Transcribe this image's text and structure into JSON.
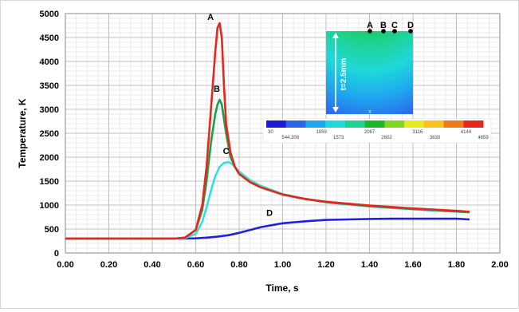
{
  "chart_data": {
    "type": "line",
    "xlabel": "Time, s",
    "ylabel": "Temperature, K",
    "xlim": [
      0,
      2
    ],
    "ylim": [
      0,
      5000
    ],
    "x_ticks": [
      "0.00",
      "0.20",
      "0.40",
      "0.60",
      "0.80",
      "1.00",
      "1.20",
      "1.40",
      "1.60",
      "1.80",
      "2.00"
    ],
    "y_ticks": [
      "0",
      "500",
      "1000",
      "1500",
      "2000",
      "2500",
      "3000",
      "3500",
      "4000",
      "4500",
      "5000"
    ],
    "grid": true,
    "series": [
      {
        "name": "A",
        "color": "#e8261c",
        "x": [
          0,
          0.5,
          0.55,
          0.6,
          0.63,
          0.65,
          0.67,
          0.69,
          0.7,
          0.71,
          0.72,
          0.73,
          0.74,
          0.76,
          0.78,
          0.8,
          0.85,
          0.9,
          1.0,
          1.1,
          1.2,
          1.4,
          1.6,
          1.8,
          1.86
        ],
        "y": [
          300,
          300,
          320,
          480,
          1000,
          1800,
          3000,
          4200,
          4700,
          4800,
          4500,
          3500,
          2700,
          2100,
          1800,
          1650,
          1480,
          1370,
          1220,
          1130,
          1070,
          990,
          930,
          880,
          860
        ]
      },
      {
        "name": "B",
        "color": "#1aa04a",
        "x": [
          0,
          0.5,
          0.55,
          0.6,
          0.63,
          0.65,
          0.67,
          0.69,
          0.7,
          0.71,
          0.72,
          0.73,
          0.74,
          0.76,
          0.78,
          0.8,
          0.85,
          0.9,
          1.0,
          1.1,
          1.2,
          1.4,
          1.6,
          1.8,
          1.86
        ],
        "y": [
          300,
          300,
          320,
          480,
          900,
          1500,
          2300,
          2900,
          3100,
          3200,
          3100,
          2800,
          2500,
          2000,
          1800,
          1650,
          1480,
          1370,
          1220,
          1130,
          1060,
          980,
          920,
          870,
          850
        ]
      },
      {
        "name": "C",
        "color": "#33e0e0",
        "x": [
          0,
          0.5,
          0.55,
          0.6,
          0.63,
          0.65,
          0.67,
          0.69,
          0.71,
          0.73,
          0.75,
          0.77,
          0.8,
          0.85,
          0.9,
          1.0,
          1.1,
          1.2,
          1.4,
          1.6,
          1.8,
          1.86
        ],
        "y": [
          300,
          300,
          310,
          400,
          650,
          950,
          1300,
          1600,
          1800,
          1880,
          1900,
          1850,
          1700,
          1520,
          1400,
          1230,
          1130,
          1060,
          970,
          910,
          860,
          850
        ]
      },
      {
        "name": "D",
        "color": "#2020e0",
        "x": [
          0,
          0.5,
          0.55,
          0.6,
          0.65,
          0.7,
          0.75,
          0.8,
          0.85,
          0.9,
          0.95,
          1.0,
          1.1,
          1.2,
          1.3,
          1.4,
          1.5,
          1.6,
          1.7,
          1.8,
          1.86
        ],
        "y": [
          300,
          300,
          300,
          305,
          320,
          340,
          370,
          420,
          480,
          540,
          580,
          620,
          660,
          690,
          700,
          710,
          715,
          715,
          715,
          715,
          700
        ]
      }
    ],
    "inset": {
      "labels": [
        "A",
        "B",
        "C",
        "D"
      ],
      "thickness_label": "t=2.5mm",
      "bottom_marker": "x",
      "colorbar_ticks_top": [
        "30",
        "1059",
        "2087",
        "3116",
        "4144"
      ],
      "colorbar_ticks_bottom": [
        "544.306",
        "1573",
        "2602",
        "3630",
        "4659"
      ],
      "colorbar_colors": [
        "#1b1bd6",
        "#2b65ea",
        "#1fa6f0",
        "#1fd9d9",
        "#1ed28f",
        "#1eb72a",
        "#7fd61e",
        "#e8e81e",
        "#f7c21a",
        "#ef7a1a",
        "#e8261c"
      ]
    }
  }
}
